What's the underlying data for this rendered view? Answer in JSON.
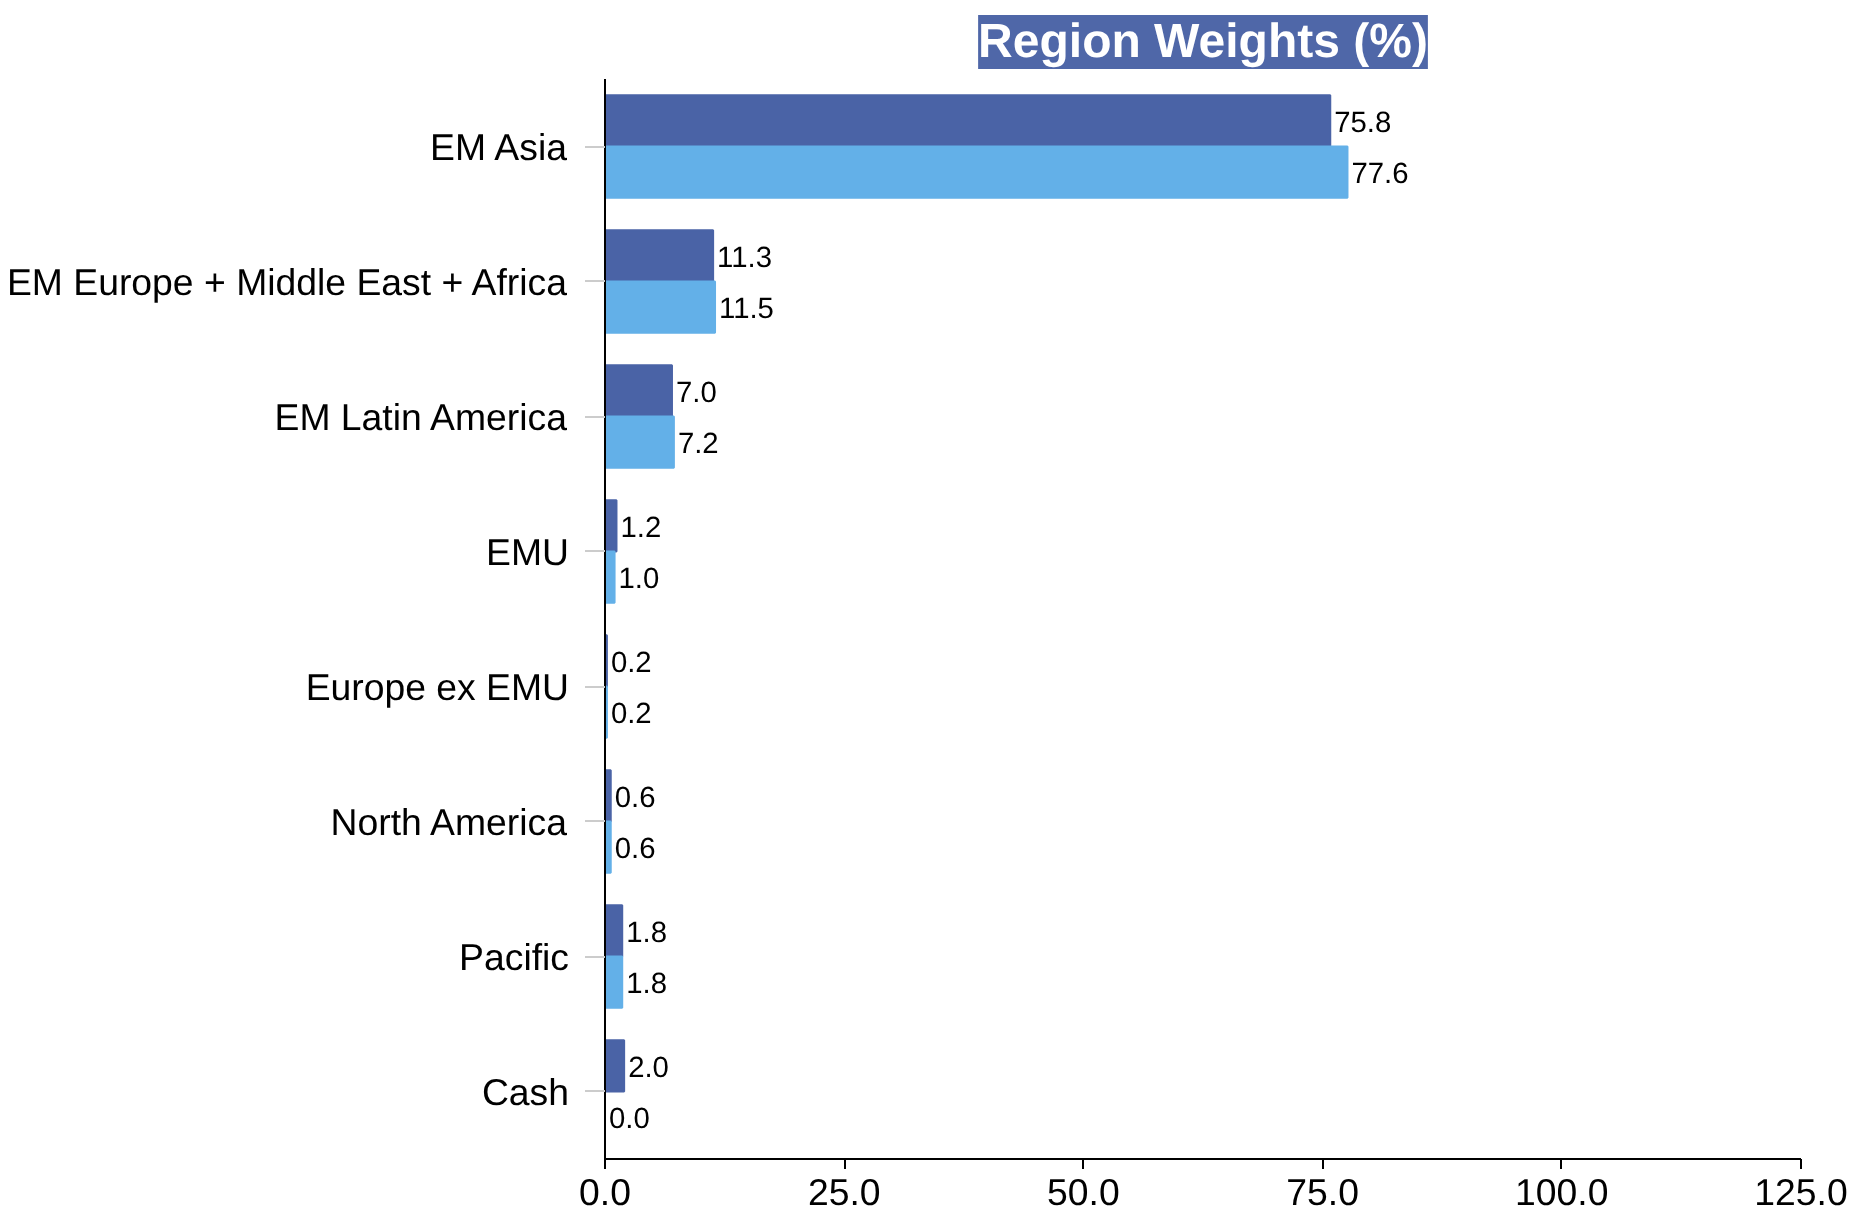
{
  "chart_data": {
    "type": "bar",
    "orientation": "horizontal",
    "title": "Region Weights (%)",
    "categories": [
      "EM Asia",
      "EM Europe + Middle East + Africa",
      "EM Latin America",
      "EMU",
      "Europe ex EMU",
      "North America",
      "Pacific",
      "Cash"
    ],
    "series": [
      {
        "color": "#4a63a6",
        "values": [
          75.8,
          11.3,
          7.0,
          1.2,
          0.2,
          0.6,
          1.8,
          2.0
        ],
        "value_labels": [
          "75.8",
          "11.3",
          "7.0",
          "1.2",
          "0.2",
          "0.6",
          "1.8",
          "2.0"
        ]
      },
      {
        "color": "#63b0e8",
        "values": [
          77.6,
          11.5,
          7.2,
          1.0,
          0.2,
          0.6,
          1.8,
          0.0
        ],
        "value_labels": [
          "77.6",
          "11.5",
          "7.2",
          "1.0",
          "0.2",
          "0.6",
          "1.8",
          "0.0"
        ]
      }
    ],
    "xlim": [
      0,
      125
    ],
    "xticks": [
      {
        "value": 0,
        "label": "0.0"
      },
      {
        "value": 25,
        "label": "25.0"
      },
      {
        "value": 50,
        "label": "50.0"
      },
      {
        "value": 75,
        "label": "75.0"
      },
      {
        "value": 100,
        "label": "100.0"
      },
      {
        "value": 125,
        "label": "125.0"
      }
    ],
    "grid": false
  }
}
